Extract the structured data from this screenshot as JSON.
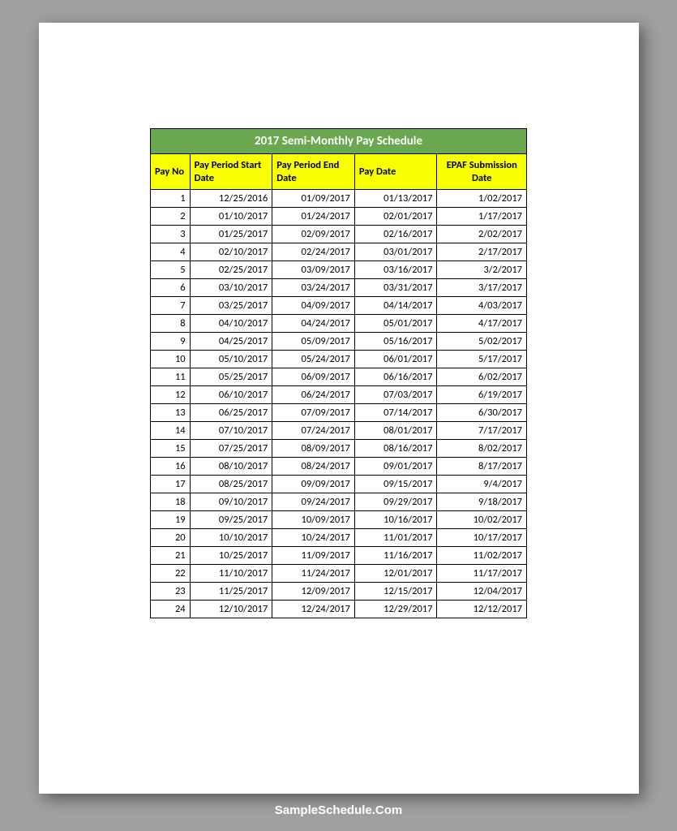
{
  "watermark": "SampleSchedule.Com",
  "table": {
    "title": "2017 Semi-Monthly Pay Schedule",
    "title_bg": "#6aa84f",
    "title_color": "#ffffff",
    "header_bg": "#f8ff00",
    "header_color": "#000000",
    "border_color": "#000000",
    "cell_fontsize": 12.5,
    "title_fontsize": 15,
    "columns": [
      {
        "key": "payno",
        "label": "Pay No",
        "align": "left",
        "width": 44
      },
      {
        "key": "start",
        "label": "Pay Period Start Date",
        "align": "left",
        "width": 92
      },
      {
        "key": "end",
        "label": "Pay Period End Date",
        "align": "left",
        "width": 92
      },
      {
        "key": "paydate",
        "label": "Pay Date",
        "align": "left",
        "width": 92
      },
      {
        "key": "epaf",
        "label": "EPAF Submission Date",
        "align": "center",
        "width": 100
      }
    ],
    "rows": [
      [
        "1",
        "12/25/2016",
        "01/09/2017",
        "01/13/2017",
        "1/02/2017"
      ],
      [
        "2",
        "01/10/2017",
        "01/24/2017",
        "02/01/2017",
        "1/17/2017"
      ],
      [
        "3",
        "01/25/2017",
        "02/09/2017",
        "02/16/2017",
        "2/02/2017"
      ],
      [
        "4",
        "02/10/2017",
        "02/24/2017",
        "03/01/2017",
        "2/17/2017"
      ],
      [
        "5",
        "02/25/2017",
        "03/09/2017",
        "03/16/2017",
        "3/2/2017"
      ],
      [
        "6",
        "03/10/2017",
        "03/24/2017",
        "03/31/2017",
        "3/17/2017"
      ],
      [
        "7",
        "03/25/2017",
        "04/09/2017",
        "04/14/2017",
        "4/03/2017"
      ],
      [
        "8",
        "04/10/2017",
        "04/24/2017",
        "05/01/2017",
        "4/17/2017"
      ],
      [
        "9",
        "04/25/2017",
        "05/09/2017",
        "05/16/2017",
        "5/02/2017"
      ],
      [
        "10",
        "05/10/2017",
        "05/24/2017",
        "06/01/2017",
        "5/17/2017"
      ],
      [
        "11",
        "05/25/2017",
        "06/09/2017",
        "06/16/2017",
        "6/02/2017"
      ],
      [
        "12",
        "06/10/2017",
        "06/24/2017",
        "07/03/2017",
        "6/19/2017"
      ],
      [
        "13",
        "06/25/2017",
        "07/09/2017",
        "07/14/2017",
        "6/30/2017"
      ],
      [
        "14",
        "07/10/2017",
        "07/24/2017",
        "08/01/2017",
        "7/17/2017"
      ],
      [
        "15",
        "07/25/2017",
        "08/09/2017",
        "08/16/2017",
        "8/02/2017"
      ],
      [
        "16",
        "08/10/2017",
        "08/24/2017",
        "09/01/2017",
        "8/17/2017"
      ],
      [
        "17",
        "08/25/2017",
        "09/09/2017",
        "09/15/2017",
        "9/4/2017"
      ],
      [
        "18",
        "09/10/2017",
        "09/24/2017",
        "09/29/2017",
        "9/18/2017"
      ],
      [
        "19",
        "09/25/2017",
        "10/09/2017",
        "10/16/2017",
        "10/02/2017"
      ],
      [
        "20",
        "10/10/2017",
        "10/24/2017",
        "11/01/2017",
        "10/17/2017"
      ],
      [
        "21",
        "10/25/2017",
        "11/09/2017",
        "11/16/2017",
        "11/02/2017"
      ],
      [
        "22",
        "11/10/2017",
        "11/24/2017",
        "12/01/2017",
        "11/17/2017"
      ],
      [
        "23",
        "11/25/2017",
        "12/09/2017",
        "12/15/2017",
        "12/04/2017"
      ],
      [
        "24",
        "12/10/2017",
        "12/24/2017",
        "12/29/2017",
        "12/12/2017"
      ]
    ]
  }
}
